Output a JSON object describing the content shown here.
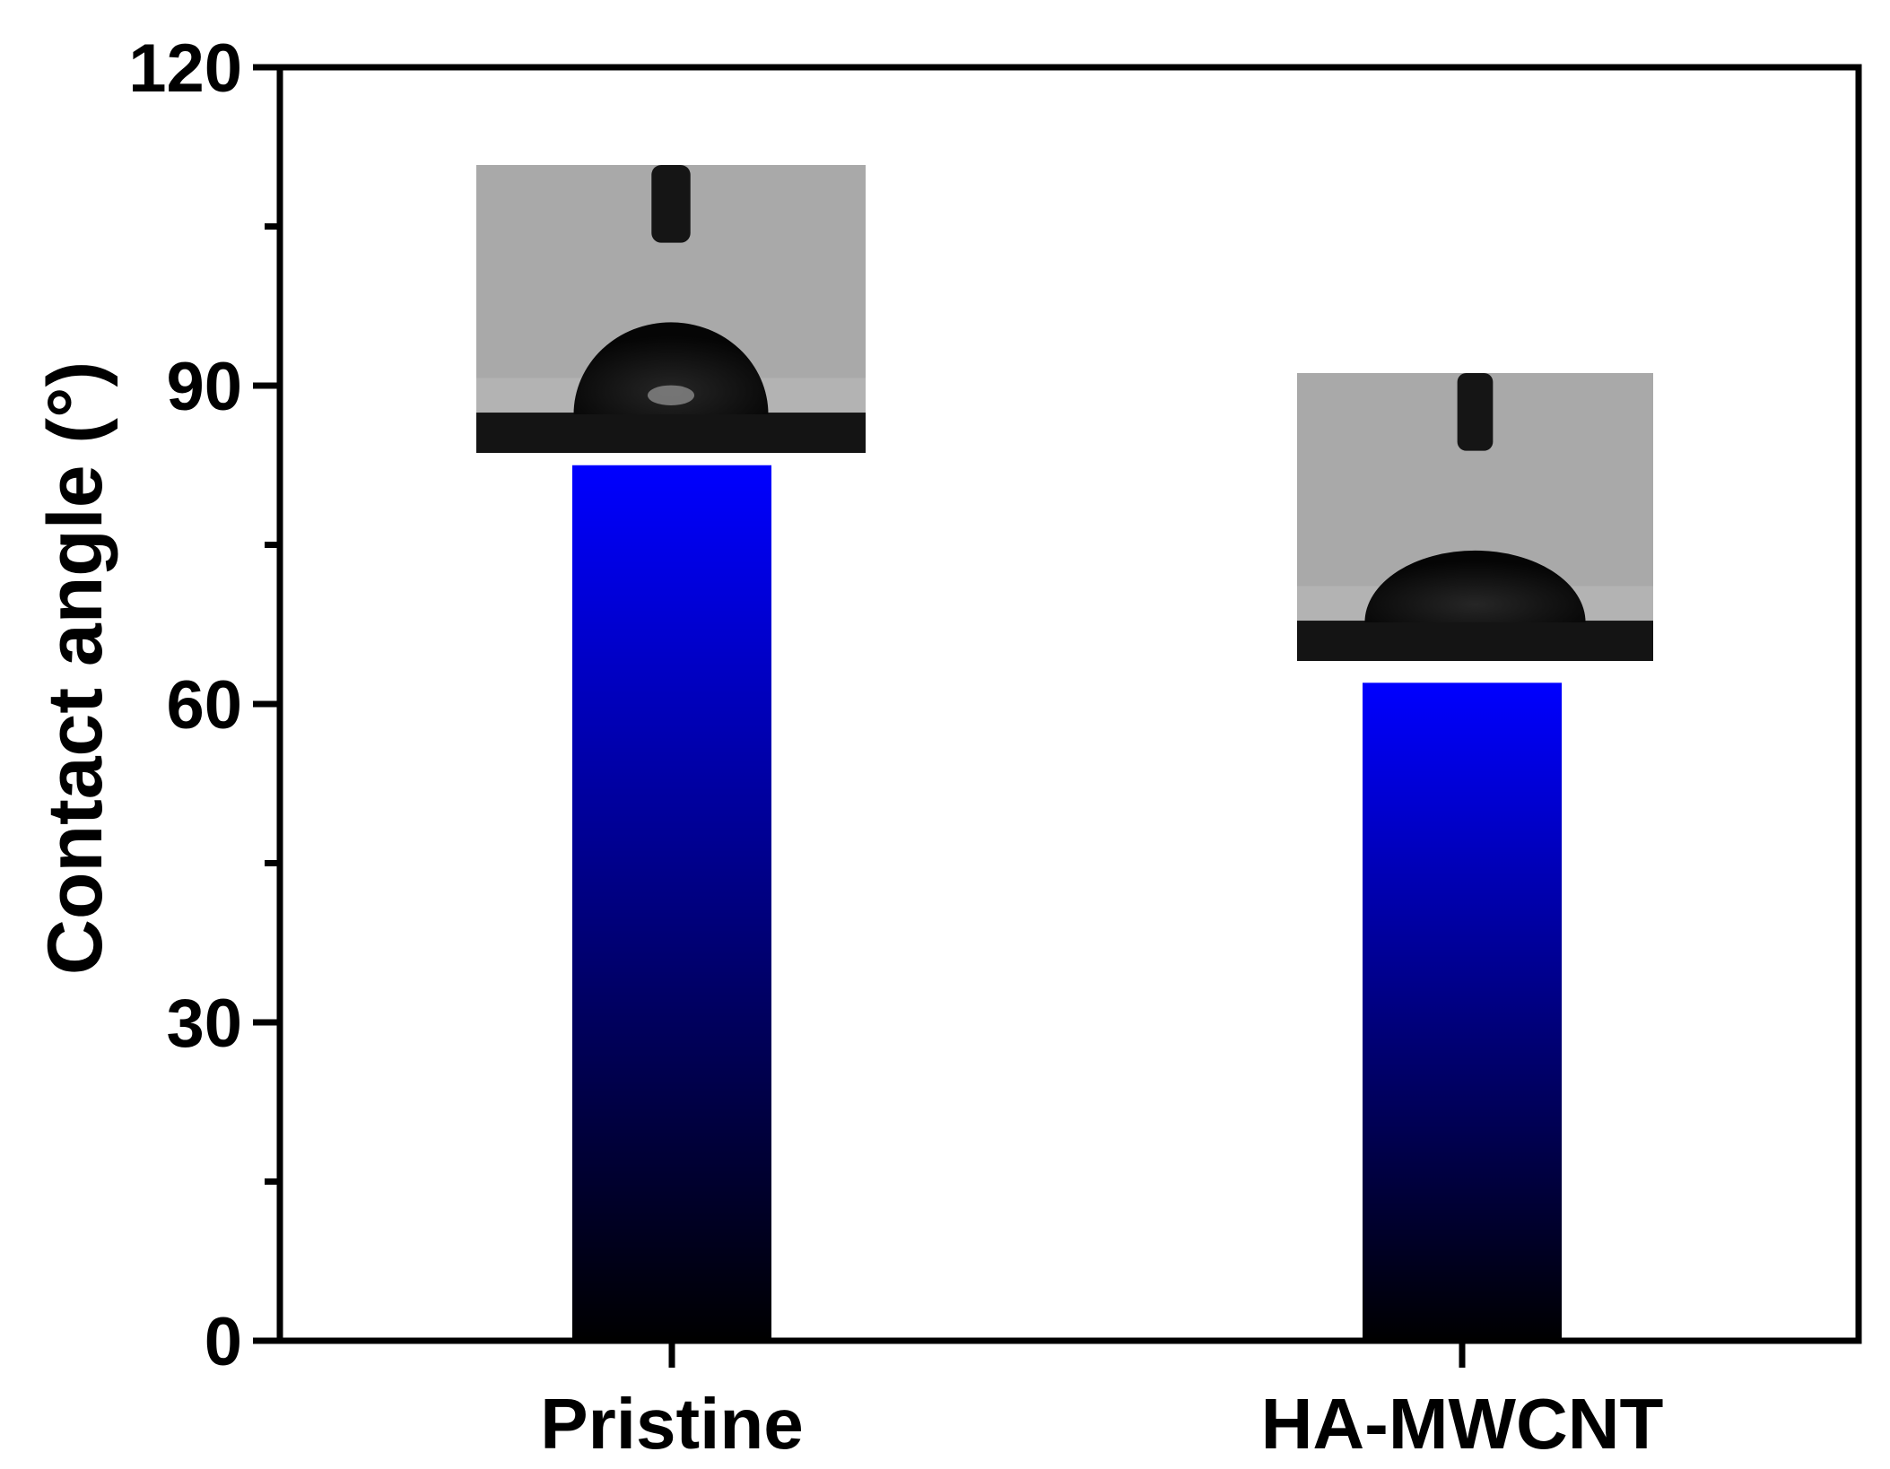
{
  "chart_data": {
    "type": "bar",
    "categories": [
      "Pristine",
      "HA-MWCNT"
    ],
    "values": [
      82.5,
      62
    ],
    "title": "",
    "xlabel": "",
    "ylabel": "Contact angle (°)",
    "ylim": [
      0,
      120
    ],
    "yticks": [
      "0",
      "30",
      "60",
      "90",
      "120"
    ],
    "grid": false,
    "legend": "none",
    "bar_gradient": {
      "top": "#0000ff",
      "bottom": "#000000"
    },
    "insets": [
      {
        "category": "Pristine",
        "content": "water-droplet-photo"
      },
      {
        "category": "HA-MWCNT",
        "content": "water-droplet-photo"
      }
    ]
  }
}
